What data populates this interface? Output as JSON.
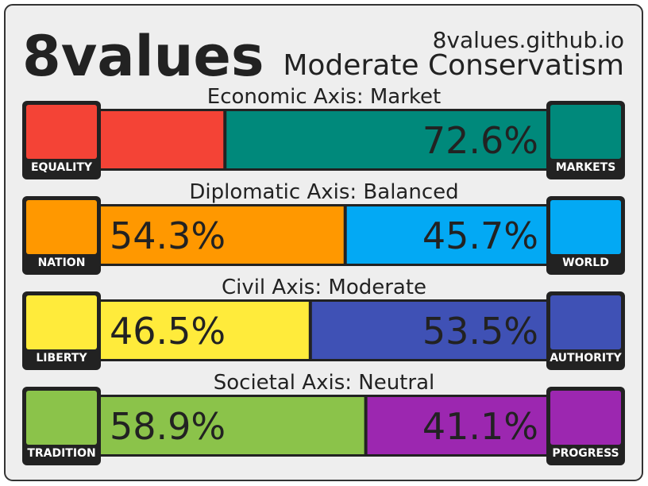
{
  "header": {
    "logo": "8values",
    "site": "8values.github.io",
    "ideology": "Moderate Conservatism"
  },
  "axes": [
    {
      "title": "Economic Axis: Market",
      "left": {
        "label": "EQUALITY",
        "value": 27.4,
        "color": "#f44336"
      },
      "right": {
        "label": "MARKETS",
        "value": 72.6,
        "value_label": "72.6%",
        "color": "#00897b"
      }
    },
    {
      "title": "Diplomatic Axis: Balanced",
      "left": {
        "label": "NATION",
        "value": 54.3,
        "value_label": "54.3%",
        "color": "#ff9800"
      },
      "right": {
        "label": "WORLD",
        "value": 45.7,
        "value_label": "45.7%",
        "color": "#03a9f4"
      }
    },
    {
      "title": "Civil Axis: Moderate",
      "left": {
        "label": "LIBERTY",
        "value": 46.5,
        "value_label": "46.5%",
        "color": "#ffeb3b"
      },
      "right": {
        "label": "AUTHORITY",
        "value": 53.5,
        "value_label": "53.5%",
        "color": "#3f51b5"
      }
    },
    {
      "title": "Societal Axis: Neutral",
      "left": {
        "label": "TRADITION",
        "value": 58.9,
        "value_label": "58.9%",
        "color": "#8bc34a"
      },
      "right": {
        "label": "PROGRESS",
        "value": 41.1,
        "value_label": "41.1%",
        "color": "#9c27b0"
      }
    }
  ]
}
